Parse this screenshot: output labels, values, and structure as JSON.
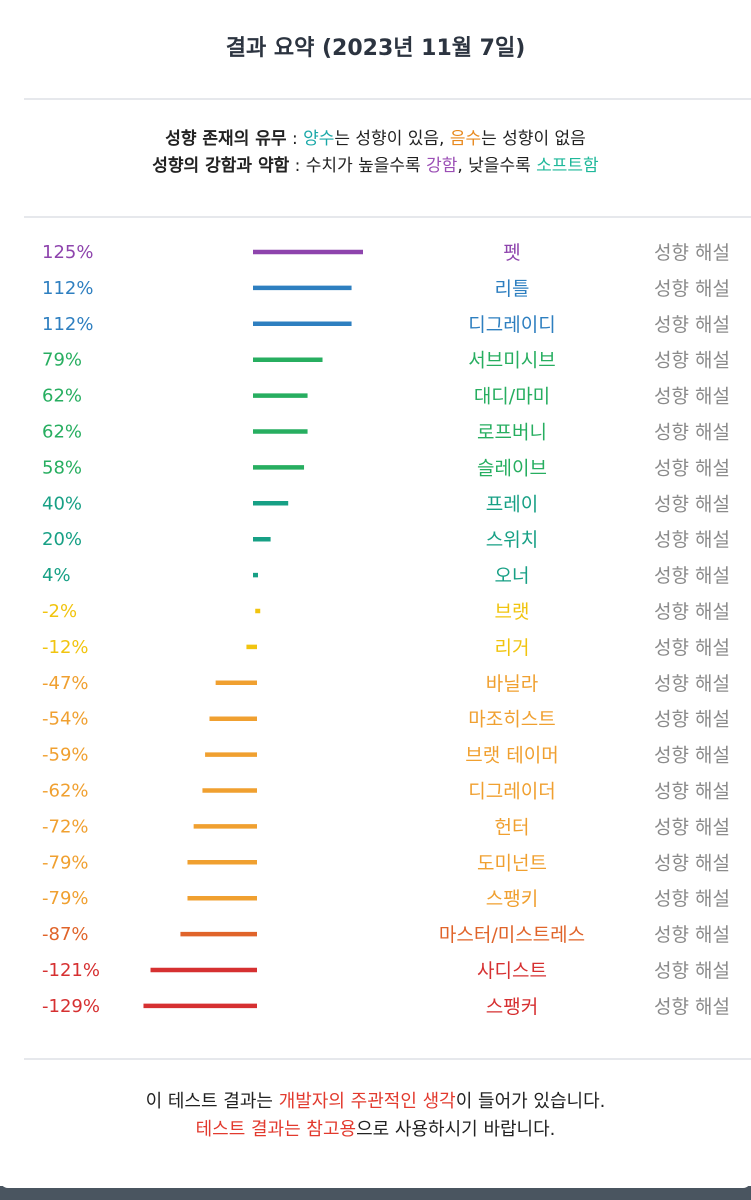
{
  "header": {
    "title": "결과 요약 (2023년 11월 7일)"
  },
  "legend": {
    "line1_label": "성향 존재의 유무",
    "line1_sep": " : ",
    "line1_positive": "양수",
    "line1_positive_desc": "는 성향이 있음, ",
    "line1_negative": "음수",
    "line1_negative_desc": "는 성향이 없음",
    "line2_label": "성향의 강함과 약함",
    "line2_sep": " : 수치가 높을수록 ",
    "line2_strong": "강함",
    "line2_mid": ", 낮을수록 ",
    "line2_soft": "소프트함"
  },
  "chart_data": {
    "type": "bar",
    "orientation": "horizontal",
    "description_label": "성향 해설",
    "rows": [
      {
        "value_label": "125%",
        "value": 125,
        "name": "펫",
        "color": "#8e44ad"
      },
      {
        "value_label": "112%",
        "value": 112,
        "name": "리틀",
        "color": "#2e7fc0"
      },
      {
        "value_label": "112%",
        "value": 112,
        "name": "디그레이디",
        "color": "#2e7fc0"
      },
      {
        "value_label": "79%",
        "value": 79,
        "name": "서브미시브",
        "color": "#27ae60"
      },
      {
        "value_label": "62%",
        "value": 62,
        "name": "대디/마미",
        "color": "#27ae60"
      },
      {
        "value_label": "62%",
        "value": 62,
        "name": "로프버니",
        "color": "#27ae60"
      },
      {
        "value_label": "58%",
        "value": 58,
        "name": "슬레이브",
        "color": "#27ae60"
      },
      {
        "value_label": "40%",
        "value": 40,
        "name": "프레이",
        "color": "#17a085"
      },
      {
        "value_label": "20%",
        "value": 20,
        "name": "스위치",
        "color": "#17a085"
      },
      {
        "value_label": "4%",
        "value": 4,
        "name": "오너",
        "color": "#17a085"
      },
      {
        "value_label": "-2%",
        "value": -2,
        "name": "브랫",
        "color": "#f1c40f"
      },
      {
        "value_label": "-12%",
        "value": -12,
        "name": "리거",
        "color": "#f1c40f"
      },
      {
        "value_label": "-47%",
        "value": -47,
        "name": "바닐라",
        "color": "#f0a030"
      },
      {
        "value_label": "-54%",
        "value": -54,
        "name": "마조히스트",
        "color": "#f0a030"
      },
      {
        "value_label": "-59%",
        "value": -59,
        "name": "브랫 테이머",
        "color": "#f0a030"
      },
      {
        "value_label": "-62%",
        "value": -62,
        "name": "디그레이더",
        "color": "#f0a030"
      },
      {
        "value_label": "-72%",
        "value": -72,
        "name": "헌터",
        "color": "#f0a030"
      },
      {
        "value_label": "-79%",
        "value": -79,
        "name": "도미넌트",
        "color": "#f0a030"
      },
      {
        "value_label": "-79%",
        "value": -79,
        "name": "스팽키",
        "color": "#f0a030"
      },
      {
        "value_label": "-87%",
        "value": -87,
        "name": "마스터/미스트레스",
        "color": "#e0642a"
      },
      {
        "value_label": "-121%",
        "value": -121,
        "name": "사디스트",
        "color": "#d63031"
      },
      {
        "value_label": "-129%",
        "value": -129,
        "name": "스팽커",
        "color": "#d63031"
      }
    ]
  },
  "footer": {
    "line1_pre": "이 테스트 결과는 ",
    "line1_highlight": "개발자의 주관적인 생각",
    "line1_post": "이 들어가 있습니다.",
    "line2_highlight": "테스트 결과는 참고용",
    "line2_post": "으로 사용하시기 바랍니다."
  }
}
